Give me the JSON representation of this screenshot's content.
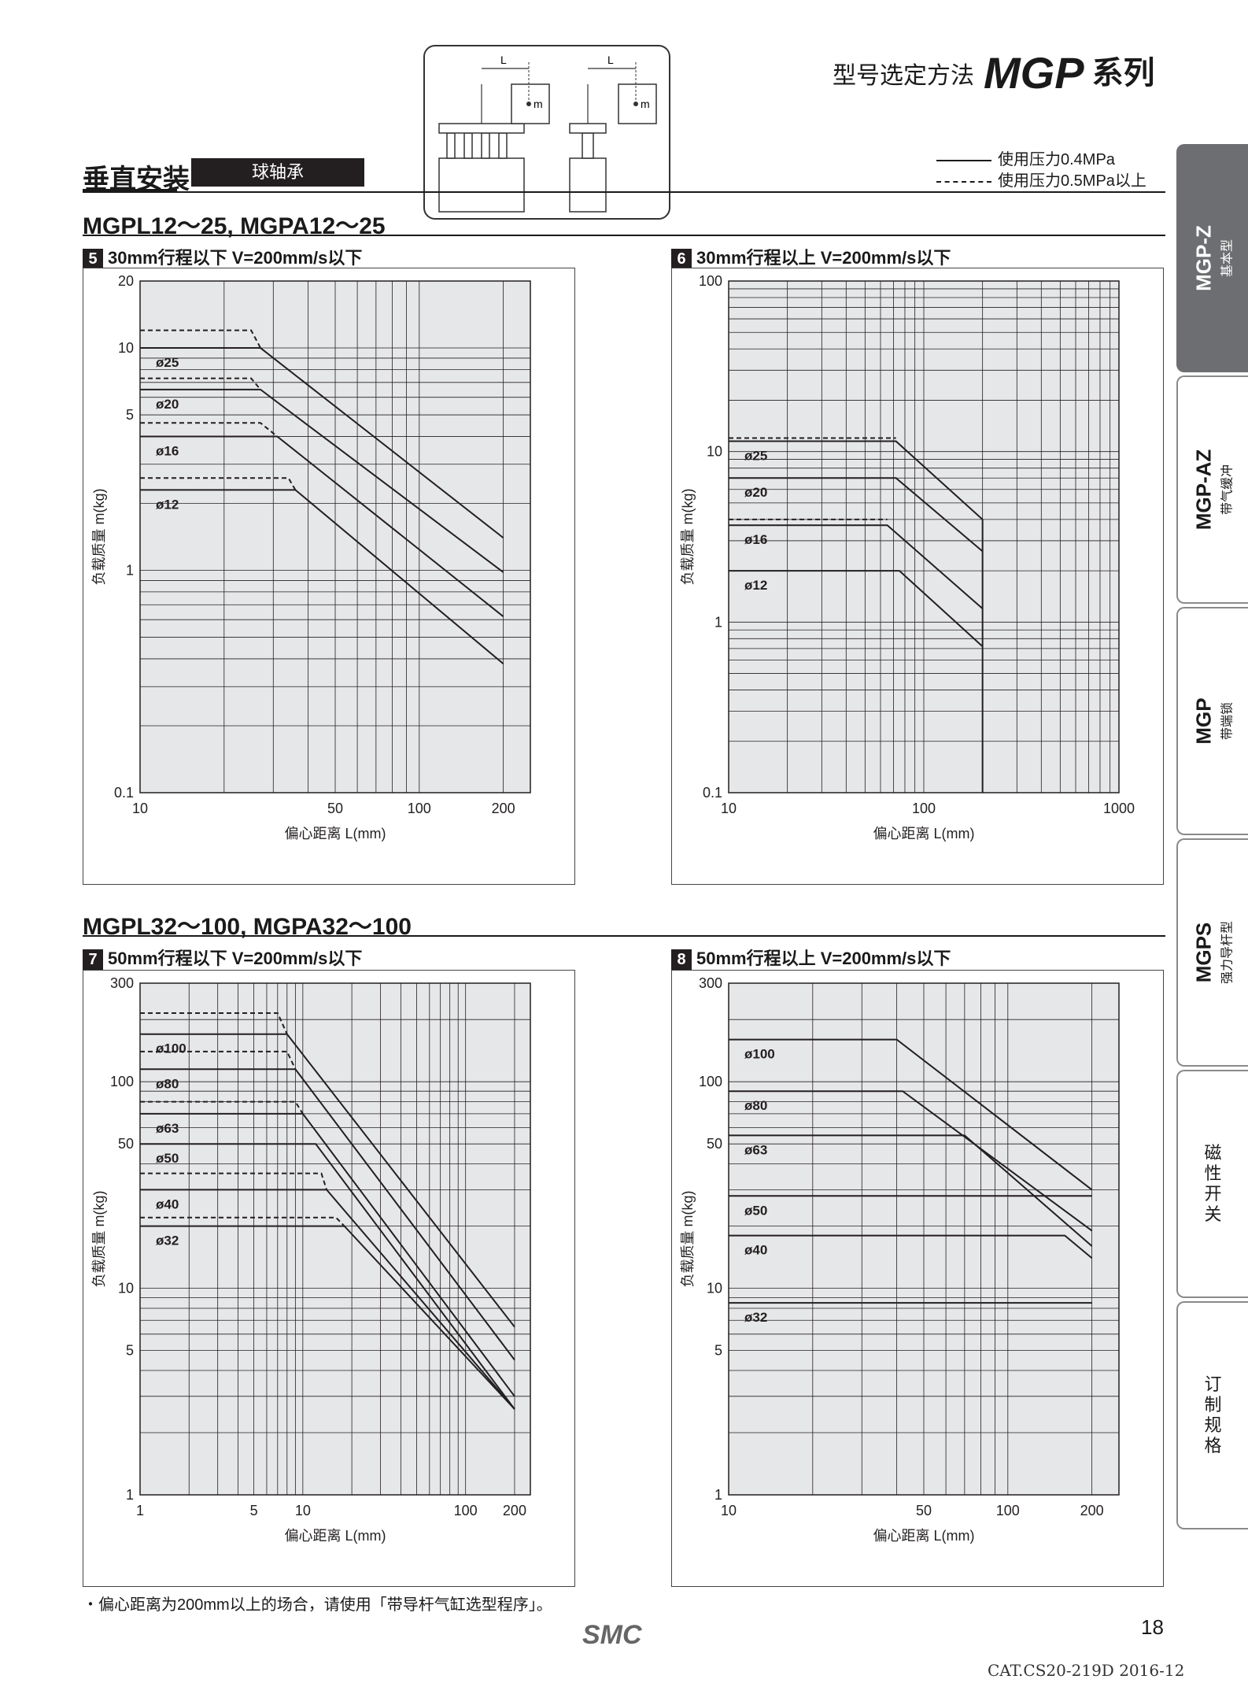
{
  "header": {
    "title_prefix": "型号选定方法",
    "series_name": "MGP",
    "series_suffix": "系列"
  },
  "section": {
    "title": "垂直安装",
    "badge": "球轴承"
  },
  "diagram": {
    "l_label": "L",
    "m_label": "m"
  },
  "legend": {
    "solid": "使用压力0.4MPa",
    "dashed": "使用压力0.5MPa以上"
  },
  "groups": [
    {
      "title": "MGPL12～25, MGPA12～25"
    },
    {
      "title": "MGPL32～100, MGPA32～100"
    }
  ],
  "charts": [
    {
      "num": "5",
      "title": "30mm行程以下  V=200mm/s以下"
    },
    {
      "num": "6",
      "title": "30mm行程以上  V=200mm/s以下"
    },
    {
      "num": "7",
      "title": "50mm行程以下  V=200mm/s以下"
    },
    {
      "num": "8",
      "title": "50mm行程以上  V=200mm/s以下"
    }
  ],
  "axis_labels": {
    "y": "负载质量 m(kg)",
    "x": "偏心距离 L(mm)"
  },
  "chart_data": [
    {
      "type": "line",
      "id": "5",
      "xscale": "log",
      "yscale": "log",
      "xlim": [
        10,
        250
      ],
      "ylim": [
        0.1,
        20
      ],
      "xticks": [
        10,
        50,
        100,
        200
      ],
      "yticks": [
        0.1,
        1,
        5,
        10,
        20
      ],
      "series": [
        {
          "name": "ø25",
          "solid": [
            [
              10,
              10
            ],
            [
              27,
              10
            ],
            [
              200,
              1.4
            ]
          ],
          "dashed": [
            [
              10,
              12
            ],
            [
              25,
              12
            ],
            [
              27,
              10
            ]
          ]
        },
        {
          "name": "ø20",
          "solid": [
            [
              10,
              6.5
            ],
            [
              27,
              6.5
            ],
            [
              200,
              0.98
            ]
          ],
          "dashed": [
            [
              10,
              7.3
            ],
            [
              25,
              7.3
            ],
            [
              27,
              6.5
            ]
          ]
        },
        {
          "name": "ø16",
          "solid": [
            [
              10,
              4
            ],
            [
              31,
              4
            ],
            [
              200,
              0.62
            ]
          ],
          "dashed": [
            [
              10,
              4.6
            ],
            [
              27,
              4.6
            ],
            [
              31,
              4
            ]
          ]
        },
        {
          "name": "ø12",
          "solid": [
            [
              10,
              2.3
            ],
            [
              36,
              2.3
            ],
            [
              200,
              0.38
            ]
          ],
          "dashed": [
            [
              10,
              2.6
            ],
            [
              34,
              2.6
            ],
            [
              36,
              2.3
            ]
          ]
        }
      ]
    },
    {
      "type": "line",
      "id": "6",
      "xscale": "log",
      "yscale": "log",
      "xlim": [
        10,
        1000
      ],
      "ylim": [
        0.1,
        100
      ],
      "xticks": [
        10,
        100,
        1000
      ],
      "yticks": [
        0.1,
        1,
        10,
        100
      ],
      "series": [
        {
          "name": "ø25",
          "solid": [
            [
              10,
              11.5
            ],
            [
              72,
              11.5
            ],
            [
              200,
              4
            ],
            [
              200,
              0.1
            ]
          ],
          "dashed": [
            [
              10,
              12
            ],
            [
              72,
              12
            ]
          ]
        },
        {
          "name": "ø20",
          "solid": [
            [
              10,
              7
            ],
            [
              72,
              7
            ],
            [
              200,
              2.6
            ]
          ]
        },
        {
          "name": "ø16",
          "solid": [
            [
              10,
              3.7
            ],
            [
              65,
              3.7
            ],
            [
              200,
              1.2
            ]
          ],
          "dashed": [
            [
              10,
              4
            ],
            [
              65,
              4
            ]
          ]
        },
        {
          "name": "ø12",
          "solid": [
            [
              10,
              2
            ],
            [
              75,
              2
            ],
            [
              200,
              0.72
            ]
          ]
        }
      ]
    },
    {
      "type": "line",
      "id": "7",
      "xscale": "log",
      "yscale": "log",
      "xlim": [
        1,
        250
      ],
      "ylim": [
        1,
        300
      ],
      "xticks": [
        1,
        5,
        10,
        100,
        200
      ],
      "yticks": [
        1,
        5,
        10,
        50,
        100,
        300
      ],
      "series": [
        {
          "name": "ø100",
          "solid": [
            [
              1,
              170
            ],
            [
              8,
              170
            ],
            [
              200,
              6.5
            ]
          ],
          "dashed": [
            [
              1,
              215
            ],
            [
              7,
              215
            ],
            [
              8,
              170
            ]
          ]
        },
        {
          "name": "ø80",
          "solid": [
            [
              1,
              115
            ],
            [
              9,
              115
            ],
            [
              200,
              4.5
            ]
          ],
          "dashed": [
            [
              1,
              140
            ],
            [
              8,
              140
            ],
            [
              9,
              115
            ]
          ]
        },
        {
          "name": "ø63",
          "solid": [
            [
              1,
              70
            ],
            [
              10,
              70
            ],
            [
              200,
              3
            ]
          ],
          "dashed": [
            [
              1,
              80
            ],
            [
              9,
              80
            ],
            [
              10,
              70
            ]
          ]
        },
        {
          "name": "ø50",
          "solid": [
            [
              1,
              50
            ],
            [
              12,
              50
            ],
            [
              200,
              2.6
            ]
          ]
        },
        {
          "name": "ø40",
          "solid": [
            [
              1,
              30
            ],
            [
              14,
              30
            ],
            [
              200,
              2.6
            ]
          ],
          "dashed": [
            [
              1,
              36
            ],
            [
              13,
              36
            ],
            [
              14,
              30
            ]
          ]
        },
        {
          "name": "ø32",
          "solid": [
            [
              1,
              20
            ],
            [
              18,
              20
            ],
            [
              200,
              2.6
            ]
          ],
          "dashed": [
            [
              1,
              22
            ],
            [
              16,
              22
            ],
            [
              18,
              20
            ]
          ]
        }
      ]
    },
    {
      "type": "line",
      "id": "8",
      "xscale": "log",
      "yscale": "log",
      "xlim": [
        10,
        250
      ],
      "ylim": [
        1,
        300
      ],
      "xticks": [
        10,
        50,
        100,
        200
      ],
      "yticks": [
        1,
        5,
        10,
        50,
        100,
        300
      ],
      "series": [
        {
          "name": "ø100",
          "solid": [
            [
              10,
              160
            ],
            [
              40,
              160
            ],
            [
              200,
              30
            ]
          ]
        },
        {
          "name": "ø80",
          "solid": [
            [
              10,
              90
            ],
            [
              42,
              90
            ],
            [
              200,
              19
            ]
          ]
        },
        {
          "name": "ø63",
          "solid": [
            [
              10,
              55
            ],
            [
              70,
              55
            ],
            [
              200,
              16
            ]
          ]
        },
        {
          "name": "ø50",
          "solid": [
            [
              10,
              28
            ],
            [
              110,
              28
            ],
            [
              200,
              28
            ]
          ]
        },
        {
          "name": "ø40",
          "solid": [
            [
              10,
              18
            ],
            [
              160,
              18
            ],
            [
              200,
              14
            ]
          ]
        },
        {
          "name": "ø32",
          "solid": [
            [
              10,
              8.5
            ],
            [
              200,
              8.5
            ]
          ]
        }
      ]
    }
  ],
  "tabs": [
    {
      "main": "MGP-Z",
      "sub": "基本型"
    },
    {
      "main": "MGP-AZ",
      "sub": "带气缓冲"
    },
    {
      "main": "MGP",
      "sub": "带端锁"
    },
    {
      "main": "MGPS",
      "sub": "强力导杆型"
    },
    {
      "text": "磁性开关"
    },
    {
      "text": "订制规格"
    }
  ],
  "footer": {
    "note": "・偏心距离为200mm以上的场合，请使用「带导杆气缸选型程序」。",
    "page": "18",
    "catalog": "CAT.CS20-219D 2016-12",
    "logo": "SMC"
  }
}
